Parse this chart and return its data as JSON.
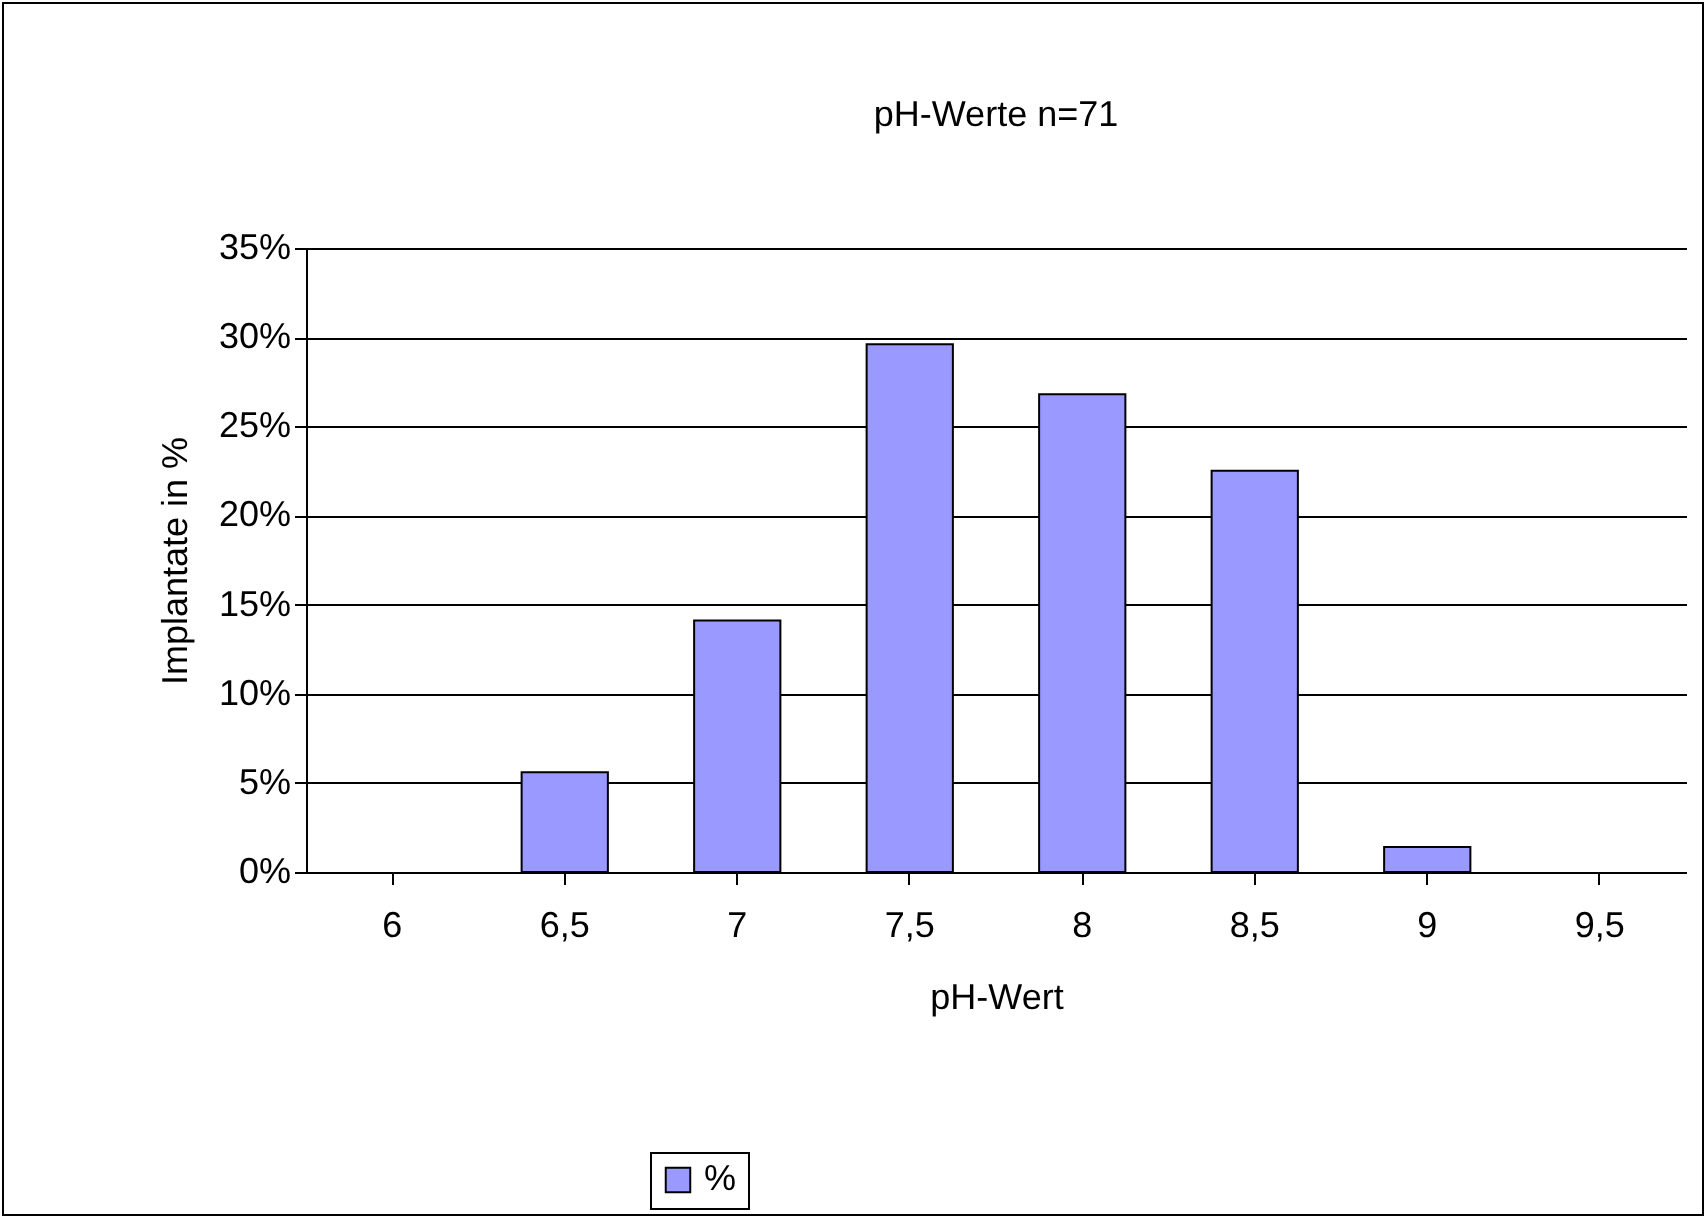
{
  "chart_data": {
    "type": "bar",
    "title": "pH-Werte n=71",
    "xlabel": "pH-Wert",
    "ylabel": "Implantate in %",
    "categories": [
      "6",
      "6,5",
      "7",
      "7,5",
      "8",
      "8,5",
      "9",
      "9,5"
    ],
    "series": [
      {
        "name": "%",
        "color": "#9999ff",
        "values": [
          null,
          5.6,
          14.1,
          29.6,
          26.8,
          22.5,
          1.4,
          null
        ]
      }
    ],
    "ylim": [
      0,
      35
    ],
    "yticks": [
      {
        "value": 0,
        "label": "0%"
      },
      {
        "value": 5,
        "label": "5%"
      },
      {
        "value": 10,
        "label": "10%"
      },
      {
        "value": 15,
        "label": "15%"
      },
      {
        "value": 20,
        "label": "20%"
      },
      {
        "value": 25,
        "label": "25%"
      },
      {
        "value": 30,
        "label": "30%"
      },
      {
        "value": 35,
        "label": "35%"
      }
    ],
    "grid": "y",
    "legend": "bottom"
  }
}
